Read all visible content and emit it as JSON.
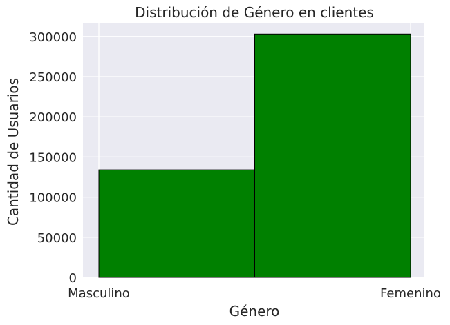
{
  "chart_data": {
    "type": "bar",
    "title": "Distribución de Género en clientes",
    "xlabel": "Género",
    "ylabel": "Cantidad de Usuarios",
    "categories": [
      "Masculino",
      "Femenino"
    ],
    "values": [
      133900,
      303000
    ],
    "ylim": [
      0,
      317000
    ],
    "yticks": [
      0,
      50000,
      100000,
      150000,
      200000,
      250000,
      300000
    ],
    "ytick_labels": [
      "0",
      "50000",
      "100000",
      "150000",
      "200000",
      "250000",
      "300000"
    ],
    "grid": true,
    "bar_color": "#008000",
    "edge_color": "#000000",
    "background_color": "#eaeaf2"
  }
}
